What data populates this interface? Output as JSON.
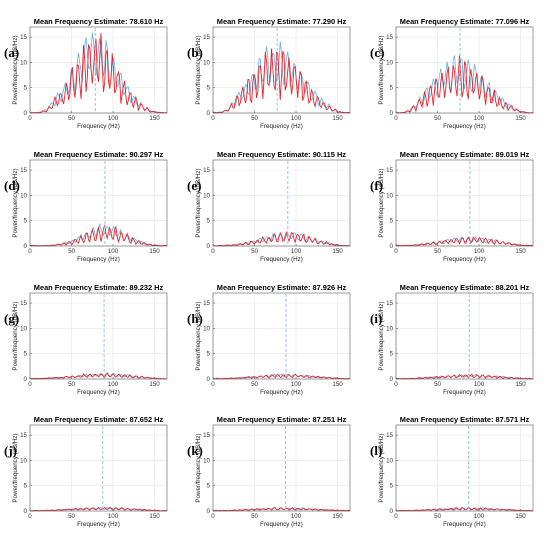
{
  "figure": {
    "xlabel": "Frequency (Hz)",
    "ylabel": "Power/frequency (dB/Hz)",
    "title_prefix": "Mean Frequency Estimate: ",
    "colors": {
      "series_a": "#e8262d",
      "series_b": "#64b1e8",
      "mean_line": "#7cc4e6",
      "grid": "#e6e6e6",
      "axes": "#5a5a5a"
    }
  },
  "chart_data": [
    {
      "panel": "(a)",
      "type": "line",
      "title": "Mean Frequency Estimate: 78.610 Hz",
      "mean_freq": 78.61,
      "amplitude": 13.5,
      "width": 1.0,
      "xlabel": "Frequency (Hz)",
      "ylabel": "Power/frequency (dB/Hz)",
      "xlim": [
        0,
        165
      ],
      "ylim": [
        0,
        17
      ],
      "xticks": [
        0,
        50,
        100,
        150
      ],
      "yticks": [
        0,
        5,
        10,
        15
      ],
      "grid": true
    },
    {
      "panel": "(b)",
      "type": "line",
      "title": "Mean Frequency Estimate: 77.290 Hz",
      "mean_freq": 77.29,
      "amplitude": 11.5,
      "width": 1.12,
      "xlabel": "Frequency (Hz)",
      "ylabel": "Power/frequency (dB/Hz)",
      "xlim": [
        0,
        165
      ],
      "ylim": [
        0,
        17
      ],
      "xticks": [
        0,
        50,
        100,
        150
      ],
      "yticks": [
        0,
        5,
        10,
        15
      ],
      "grid": true
    },
    {
      "panel": "(c)",
      "type": "line",
      "title": "Mean Frequency Estimate: 77.096 Hz",
      "mean_freq": 77.096,
      "amplitude": 9.5,
      "width": 1.15,
      "xlabel": "Frequency (Hz)",
      "ylabel": "Power/frequency (dB/Hz)",
      "xlim": [
        0,
        165
      ],
      "ylim": [
        0,
        17
      ],
      "xticks": [
        0,
        50,
        100,
        150
      ],
      "yticks": [
        0,
        5,
        10,
        15
      ],
      "grid": true
    },
    {
      "panel": "(d)",
      "type": "line",
      "title": "Mean Frequency Estimate: 90.297 Hz",
      "mean_freq": 90.297,
      "amplitude": 3.6,
      "width": 0.9,
      "xlabel": "Frequency (Hz)",
      "ylabel": "Power/frequency (dB/Hz)",
      "xlim": [
        0,
        165
      ],
      "ylim": [
        0,
        17
      ],
      "xticks": [
        0,
        50,
        100,
        150
      ],
      "yticks": [
        0,
        5,
        10,
        15
      ],
      "grid": true
    },
    {
      "panel": "(e)",
      "type": "line",
      "title": "Mean Frequency Estimate: 90.115 Hz",
      "mean_freq": 90.115,
      "amplitude": 2.3,
      "width": 1.1,
      "xlabel": "Frequency (Hz)",
      "ylabel": "Power/frequency (dB/Hz)",
      "xlim": [
        0,
        165
      ],
      "ylim": [
        0,
        17
      ],
      "xticks": [
        0,
        50,
        100,
        150
      ],
      "yticks": [
        0,
        5,
        10,
        15
      ],
      "grid": true
    },
    {
      "panel": "(f)",
      "type": "line",
      "title": "Mean Frequency Estimate: 89.019 Hz",
      "mean_freq": 89.019,
      "amplitude": 1.5,
      "width": 1.2,
      "xlabel": "Frequency (Hz)",
      "ylabel": "Power/frequency (dB/Hz)",
      "xlim": [
        0,
        165
      ],
      "ylim": [
        0,
        17
      ],
      "xticks": [
        0,
        50,
        100,
        150
      ],
      "yticks": [
        0,
        5,
        10,
        15
      ],
      "grid": true
    },
    {
      "panel": "(g)",
      "type": "line",
      "title": "Mean Frequency Estimate: 89.232 Hz",
      "mean_freq": 89.232,
      "amplitude": 0.9,
      "width": 1.3,
      "xlabel": "Frequency (Hz)",
      "ylabel": "Power/frequency (dB/Hz)",
      "xlim": [
        0,
        165
      ],
      "ylim": [
        0,
        17
      ],
      "xticks": [
        0,
        50,
        100,
        150
      ],
      "yticks": [
        0,
        5,
        10,
        15
      ],
      "grid": true
    },
    {
      "panel": "(h)",
      "type": "line",
      "title": "Mean Frequency Estimate: 87.926 Hz",
      "mean_freq": 87.926,
      "amplitude": 0.75,
      "width": 1.3,
      "xlabel": "Frequency (Hz)",
      "ylabel": "Power/frequency (dB/Hz)",
      "xlim": [
        0,
        165
      ],
      "ylim": [
        0,
        17
      ],
      "xticks": [
        0,
        50,
        100,
        150
      ],
      "yticks": [
        0,
        5,
        10,
        15
      ],
      "grid": true
    },
    {
      "panel": "(i)",
      "type": "line",
      "title": "Mean Frequency Estimate: 88.201 Hz",
      "mean_freq": 88.201,
      "amplitude": 0.7,
      "width": 1.3,
      "xlabel": "Frequency (Hz)",
      "ylabel": "Power/frequency (dB/Hz)",
      "xlim": [
        0,
        165
      ],
      "ylim": [
        0,
        17
      ],
      "xticks": [
        0,
        50,
        100,
        150
      ],
      "yticks": [
        0,
        5,
        10,
        15
      ],
      "grid": true
    },
    {
      "panel": "(j)",
      "type": "line",
      "title": "Mean Frequency Estimate: 87.652 Hz",
      "mean_freq": 87.652,
      "amplitude": 0.55,
      "width": 1.3,
      "xlabel": "Frequency (Hz)",
      "ylabel": "Power/frequency (dB/Hz)",
      "xlim": [
        0,
        165
      ],
      "ylim": [
        0,
        17
      ],
      "xticks": [
        0,
        50,
        100,
        150
      ],
      "yticks": [
        0,
        5,
        10,
        15
      ],
      "grid": true
    },
    {
      "panel": "(k)",
      "type": "line",
      "title": "Mean Frequency Estimate: 87.251 Hz",
      "mean_freq": 87.251,
      "amplitude": 0.5,
      "width": 1.3,
      "xlabel": "Frequency (Hz)",
      "ylabel": "Power/frequency (dB/Hz)",
      "xlim": [
        0,
        165
      ],
      "ylim": [
        0,
        17
      ],
      "xticks": [
        0,
        50,
        100,
        150
      ],
      "yticks": [
        0,
        5,
        10,
        15
      ],
      "grid": true
    },
    {
      "panel": "(l)",
      "type": "line",
      "title": "Mean Frequency Estimate: 87.571 Hz",
      "mean_freq": 87.571,
      "amplitude": 0.5,
      "width": 1.3,
      "xlabel": "Frequency (Hz)",
      "ylabel": "Power/frequency (dB/Hz)",
      "xlim": [
        0,
        165
      ],
      "ylim": [
        0,
        17
      ],
      "xticks": [
        0,
        50,
        100,
        150
      ],
      "yticks": [
        0,
        5,
        10,
        15
      ],
      "grid": true
    }
  ]
}
